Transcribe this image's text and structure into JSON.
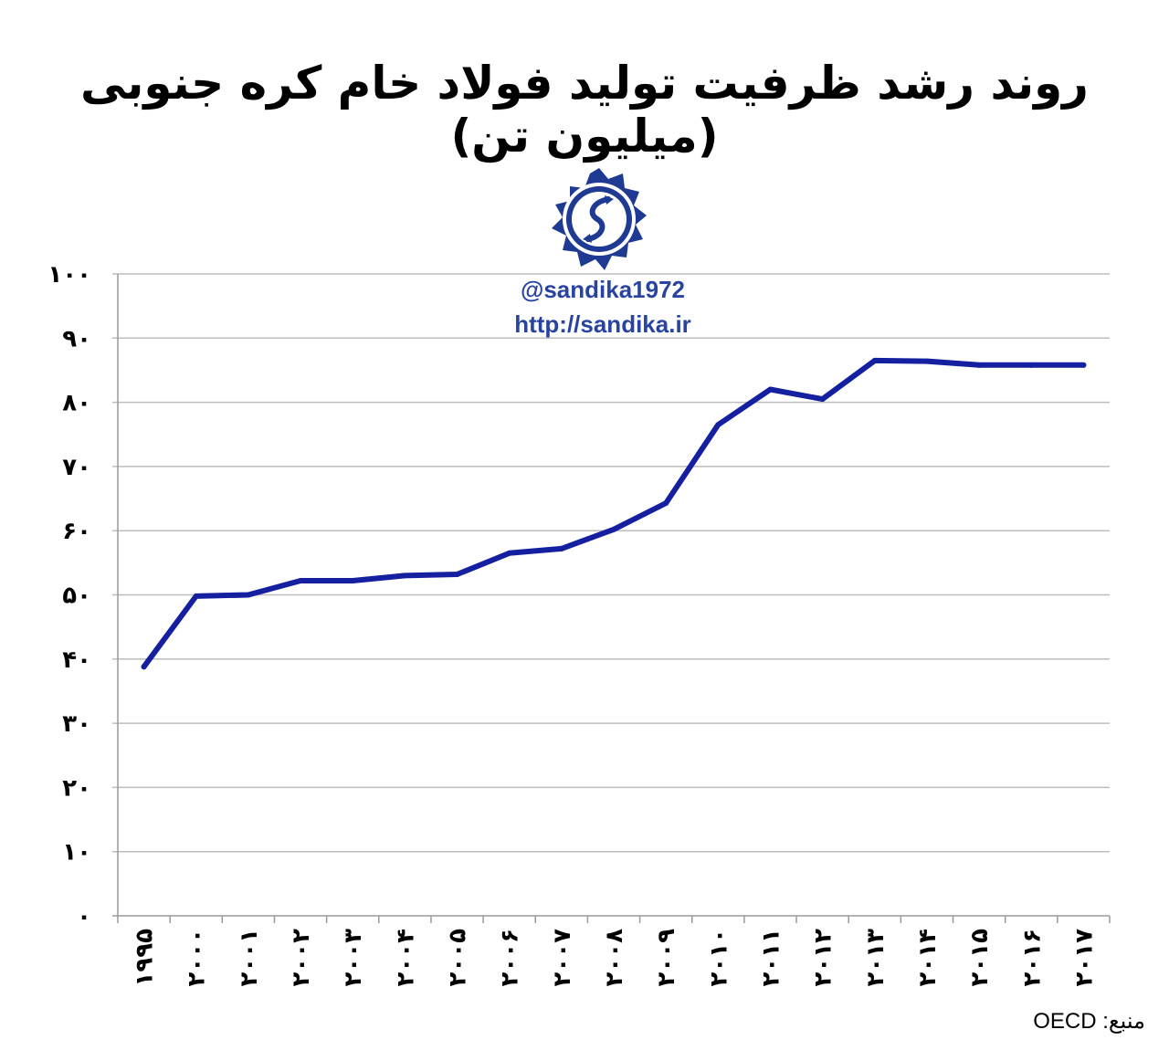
{
  "chart_data": {
    "type": "line",
    "title": "روند رشد ظرفیت تولید فولاد خام کره جنوبی (میلیون تن)",
    "x": [
      "۱۹۹۵",
      "۲۰۰۰",
      "۲۰۰۱",
      "۲۰۰۲",
      "۲۰۰۳",
      "۲۰۰۴",
      "۲۰۰۵",
      "۲۰۰۶",
      "۲۰۰۷",
      "۲۰۰۸",
      "۲۰۰۹",
      "۲۰۱۰",
      "۲۰۱۱",
      "۲۰۱۲",
      "۲۰۱۳",
      "۲۰۱۴",
      "۲۰۱۵",
      "۲۰۱۶",
      "۲۰۱۷"
    ],
    "y_ticks": [
      "۰",
      "۱۰",
      "۲۰",
      "۳۰",
      "۴۰",
      "۵۰",
      "۶۰",
      "۷۰",
      "۸۰",
      "۹۰",
      "۱۰۰"
    ],
    "values": [
      38.8,
      49.8,
      50,
      52.2,
      52.2,
      53,
      53.2,
      56.5,
      57.2,
      60.2,
      64.3,
      76.5,
      82,
      80.5,
      86.5,
      86.4,
      85.8,
      85.8,
      85.8
    ],
    "ylim": [
      0,
      100
    ],
    "grid": true,
    "legend": "none",
    "line_color": "#1520a0",
    "grid_color": "#bdbdbd"
  },
  "watermark": {
    "handle": "@sandika1972",
    "url": "http://sandika.ir"
  },
  "source_label": "منبع: OECD",
  "colors": {
    "logo_blue": "#1f3a93",
    "watermark_blue": "#2944a0"
  }
}
